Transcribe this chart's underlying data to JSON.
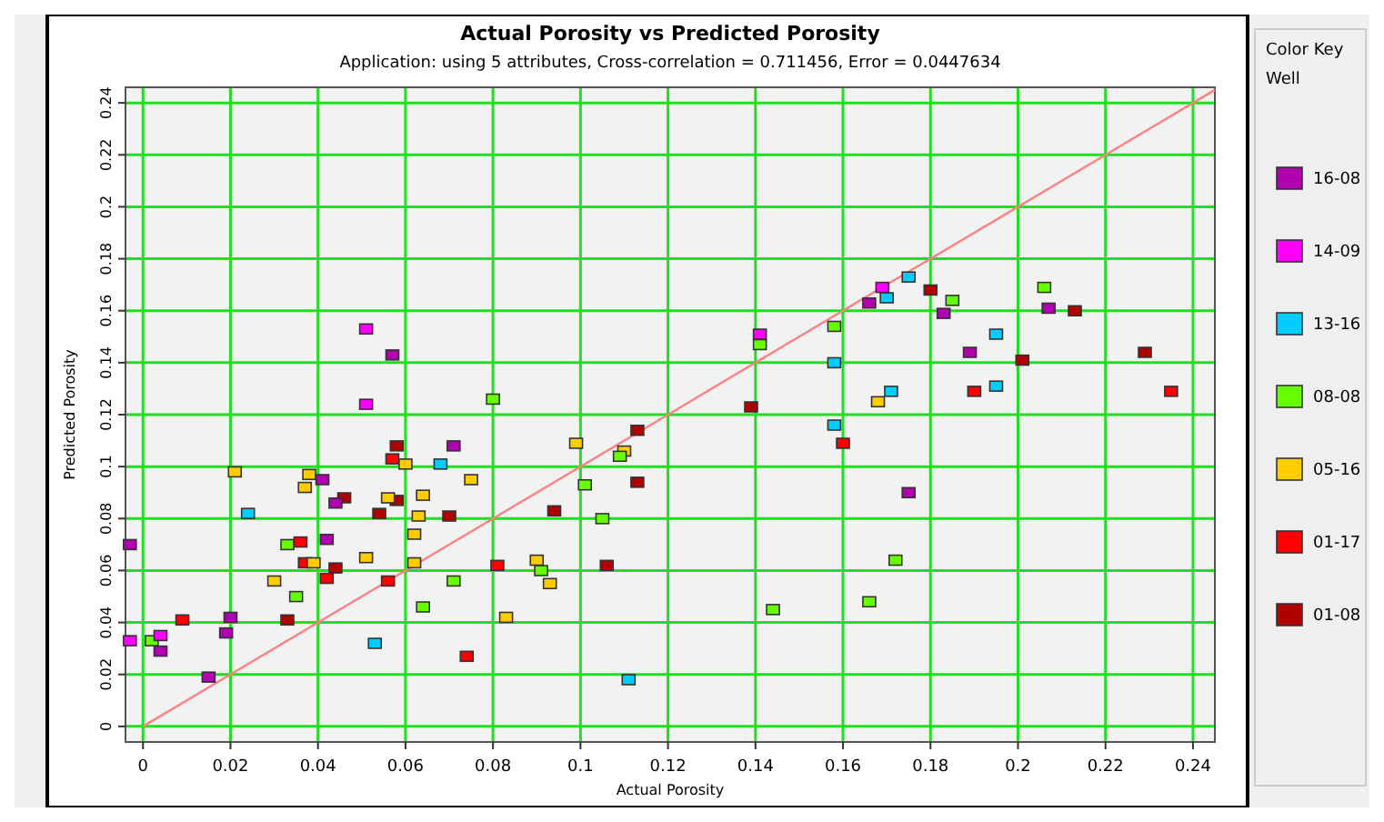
{
  "chart_data": {
    "type": "scatter",
    "title": "Actual Porosity vs Predicted Porosity",
    "subtitle": "Application: using 5 attributes, Cross-correlation = 0.711456, Error = 0.0447634",
    "xlabel": "Actual Porosity",
    "ylabel": "Predicted Porosity",
    "legend_title": "Well",
    "annotations": [
      "Color Key"
    ],
    "legend": "right",
    "grid": true,
    "marker": "square",
    "xlim": [
      -0.004,
      0.245
    ],
    "ylim": [
      -0.006,
      0.246
    ],
    "xticks": [
      0,
      0.02,
      0.04,
      0.06,
      0.08,
      0.1,
      0.12,
      0.14,
      0.16,
      0.18,
      0.2,
      0.22,
      0.24
    ],
    "yticks": [
      0,
      0.02,
      0.04,
      0.06,
      0.08,
      0.1,
      0.12,
      0.14,
      0.16,
      0.18,
      0.2,
      0.22,
      0.24
    ],
    "series": [
      {
        "name": "16-08",
        "color": "#b000b0",
        "x": [
          -0.003,
          0.004,
          0.015,
          0.019,
          0.02,
          0.041,
          0.042,
          0.044,
          0.057,
          0.071,
          0.175,
          0.166,
          0.183,
          0.189,
          0.207
        ],
        "values": [
          0.07,
          0.029,
          0.019,
          0.036,
          0.042,
          0.095,
          0.072,
          0.086,
          0.143,
          0.108,
          0.09,
          0.163,
          0.159,
          0.144,
          0.161
        ]
      },
      {
        "name": "14-09",
        "color": "#ff00ff",
        "x": [
          -0.003,
          0.004,
          0.051,
          0.051,
          0.141,
          0.169
        ],
        "values": [
          0.033,
          0.035,
          0.153,
          0.124,
          0.151,
          0.169
        ]
      },
      {
        "name": "13-16",
        "color": "#00ccff",
        "x": [
          0.024,
          0.053,
          0.068,
          0.111,
          0.158,
          0.158,
          0.171,
          0.17,
          0.175,
          0.195,
          0.195
        ],
        "values": [
          0.082,
          0.032,
          0.101,
          0.018,
          0.14,
          0.116,
          0.129,
          0.165,
          0.173,
          0.151,
          0.131
        ]
      },
      {
        "name": "08-08",
        "color": "#66ff00",
        "x": [
          0.002,
          0.033,
          0.035,
          0.064,
          0.071,
          0.08,
          0.091,
          0.101,
          0.105,
          0.109,
          0.141,
          0.144,
          0.158,
          0.166,
          0.172,
          0.185,
          0.206
        ],
        "values": [
          0.033,
          0.07,
          0.05,
          0.046,
          0.056,
          0.126,
          0.06,
          0.093,
          0.08,
          0.104,
          0.147,
          0.045,
          0.154,
          0.048,
          0.064,
          0.164,
          0.169
        ]
      },
      {
        "name": "05-16",
        "color": "#ffcc00",
        "x": [
          0.021,
          0.03,
          0.037,
          0.038,
          0.039,
          0.051,
          0.056,
          0.06,
          0.063,
          0.064,
          0.062,
          0.062,
          0.075,
          0.099,
          0.083,
          0.09,
          0.093,
          0.11,
          0.168
        ],
        "values": [
          0.098,
          0.056,
          0.092,
          0.097,
          0.063,
          0.065,
          0.088,
          0.101,
          0.081,
          0.089,
          0.074,
          0.063,
          0.095,
          0.109,
          0.042,
          0.064,
          0.055,
          0.106,
          0.125
        ]
      },
      {
        "name": "01-17",
        "color": "#ff0000",
        "x": [
          0.009,
          0.036,
          0.037,
          0.042,
          0.057,
          0.056,
          0.074,
          0.081,
          0.16,
          0.19,
          0.235
        ],
        "values": [
          0.041,
          0.071,
          0.063,
          0.057,
          0.103,
          0.056,
          0.027,
          0.062,
          0.109,
          0.129,
          0.129
        ]
      },
      {
        "name": "01-08",
        "color": "#b00000",
        "x": [
          0.033,
          0.044,
          0.046,
          0.058,
          0.054,
          0.058,
          0.07,
          0.094,
          0.106,
          0.113,
          0.113,
          0.139,
          0.18,
          0.201,
          0.213,
          0.229
        ],
        "values": [
          0.041,
          0.061,
          0.088,
          0.108,
          0.082,
          0.087,
          0.081,
          0.083,
          0.062,
          0.114,
          0.094,
          0.123,
          0.168,
          0.141,
          0.16,
          0.144
        ]
      },
      {
        "type": "line",
        "marker": "none",
        "color": "#ff8080",
        "x": [
          0,
          0.245
        ],
        "values": [
          0,
          0.245
        ]
      }
    ]
  }
}
